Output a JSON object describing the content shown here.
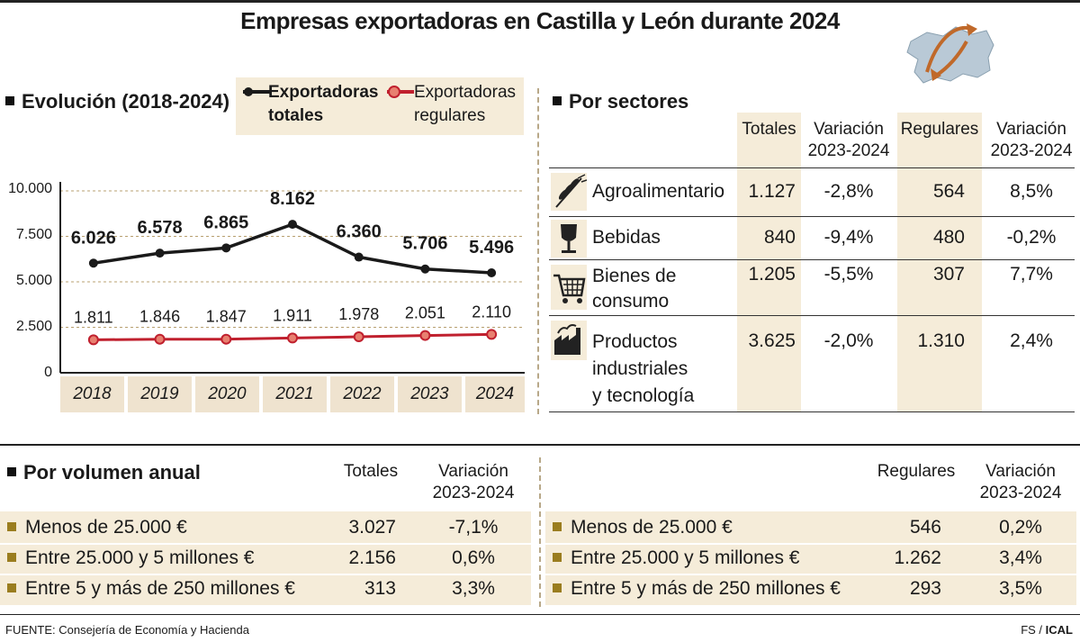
{
  "title": "Empresas exportadoras en Castilla y León durante 2024",
  "evolucion": {
    "title": "Evolución (2018-2024)",
    "legend": [
      {
        "label_line1": "Exportadoras",
        "label_line2": "totales",
        "color": "#1a1a1a"
      },
      {
        "label_line1": "Exportadoras",
        "label_line2": "regulares",
        "color": "#c0202e"
      }
    ]
  },
  "chart_data": {
    "type": "line",
    "x": [
      "2018",
      "2019",
      "2020",
      "2021",
      "2022",
      "2023",
      "2024"
    ],
    "series": [
      {
        "name": "Exportadoras totales",
        "values": [
          6026,
          6578,
          6865,
          8162,
          6360,
          5706,
          5496
        ],
        "labels": [
          "6.026",
          "6.578",
          "6.865",
          "8.162",
          "6.360",
          "5.706",
          "5.496"
        ]
      },
      {
        "name": "Exportadoras regulares",
        "values": [
          1811,
          1846,
          1847,
          1911,
          1978,
          2051,
          2110
        ],
        "labels": [
          "1.811",
          "1.846",
          "1.847",
          "1.911",
          "1.978",
          "2.051",
          "2.110"
        ]
      }
    ],
    "yticks": [
      "10.000",
      "7.500",
      "5.000",
      "2.500",
      "0"
    ],
    "ylim": [
      0,
      10000
    ]
  },
  "sectores": {
    "title": "Por sectores",
    "headers": {
      "totales": "Totales",
      "variacion_l1": "Variación",
      "variacion_l2": "2023-2024",
      "regulares": "Regulares"
    },
    "rows": [
      {
        "icon": "wheat-icon",
        "name_l1": "Agroalimentario",
        "name_l2": "",
        "name_l3": "",
        "totales": "1.127",
        "var_t": "-2,8%",
        "regulares": "564",
        "var_r": "8,5%"
      },
      {
        "icon": "wine-glass-icon",
        "name_l1": "Bebidas",
        "name_l2": "",
        "name_l3": "",
        "totales": "840",
        "var_t": "-9,4%",
        "regulares": "480",
        "var_r": "-0,2%"
      },
      {
        "icon": "shopping-cart-icon",
        "name_l1": "Bienes de",
        "name_l2": "consumo",
        "name_l3": "",
        "totales": "1.205",
        "var_t": "-5,5%",
        "regulares": "307",
        "var_r": "7,7%"
      },
      {
        "icon": "factory-icon",
        "name_l1": "Productos",
        "name_l2": "industriales",
        "name_l3": "y tecnología",
        "totales": "3.625",
        "var_t": "-2,0%",
        "regulares": "1.310",
        "var_r": "2,4%"
      }
    ]
  },
  "volumen": {
    "title": "Por volumen anual",
    "headers": {
      "totales": "Totales",
      "regulares": "Regulares",
      "variacion_l1": "Variación",
      "variacion_l2": "2023-2024"
    },
    "rows": [
      {
        "label": "Menos de 25.000 €",
        "totales": "3.027",
        "var_t": "-7,1%",
        "regulares": "546",
        "var_r": "0,2%"
      },
      {
        "label": "Entre 25.000 y 5 millones €",
        "totales": "2.156",
        "var_t": "0,6%",
        "regulares": "1.262",
        "var_r": "3,4%"
      },
      {
        "label": "Entre 5 y más de 250 millones €",
        "totales": "313",
        "var_t": "3,3%",
        "regulares": "293",
        "var_r": "3,5%"
      }
    ]
  },
  "footer": {
    "source": "FUENTE: Consejería de Economía y Hacienda",
    "credit_a": "FS / ",
    "credit_b": "ICAL"
  }
}
